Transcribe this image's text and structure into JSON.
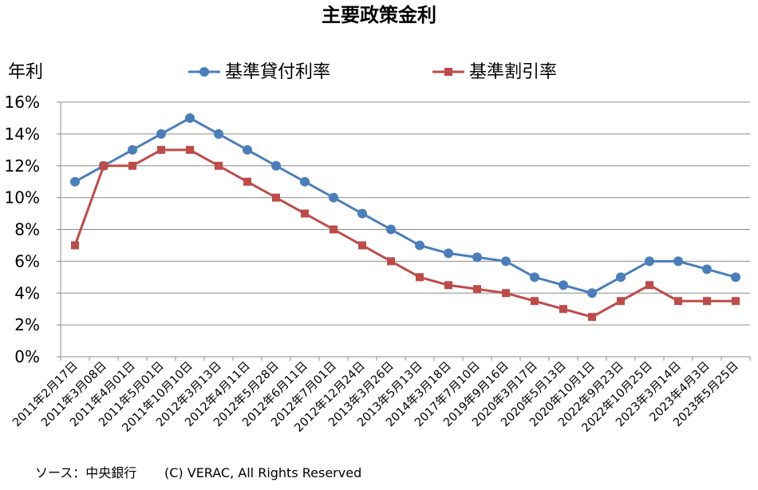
{
  "chart_data": {
    "type": "line",
    "title": "主要政策金利",
    "ylabel": "年利",
    "xlabel": "",
    "ylim": [
      0,
      16
    ],
    "yticks": [
      "0%",
      "2%",
      "4%",
      "6%",
      "8%",
      "10%",
      "12%",
      "14%",
      "16%"
    ],
    "grid": true,
    "legend_position": "top",
    "categories": [
      "2011年2月17日",
      "2011年3月08日",
      "2011年4月01日",
      "2011年5月01日",
      "2011年10月10日",
      "2012年3月13日",
      "2012年4月11日",
      "2012年5月28日",
      "2012年6月11日",
      "2012年7月01日",
      "2012年12月24日",
      "2013年3月26日",
      "2013年5月13日",
      "2014年3月18日",
      "2017年7月10日",
      "2019年9月16日",
      "2020年3月17日",
      "2020年5月13日",
      "2020年10月1日",
      "2022年9月23日",
      "2022年10月25日",
      "2023年3月14日",
      "2023年4月3日",
      "2023年5月25日"
    ],
    "series": [
      {
        "name": "基準貸付利率",
        "color": "#4a7ebb",
        "marker": "circle",
        "values": [
          11,
          12,
          13,
          14,
          15,
          14,
          13,
          12,
          11,
          10,
          9,
          8,
          7,
          6.5,
          6.25,
          6,
          5,
          4.5,
          4,
          5,
          6,
          6,
          5.5,
          5
        ]
      },
      {
        "name": "基準割引率",
        "color": "#be4b48",
        "marker": "square",
        "values": [
          7,
          12,
          12,
          13,
          13,
          12,
          11,
          10,
          9,
          8,
          7,
          6,
          5,
          4.5,
          4.25,
          4,
          3.5,
          3,
          2.5,
          3.5,
          4.5,
          3.5,
          3.5,
          3.5
        ]
      }
    ]
  },
  "footer": {
    "source": "ソース：中央銀行",
    "copyright": "(C) VERAC, All Rights Reserved"
  }
}
